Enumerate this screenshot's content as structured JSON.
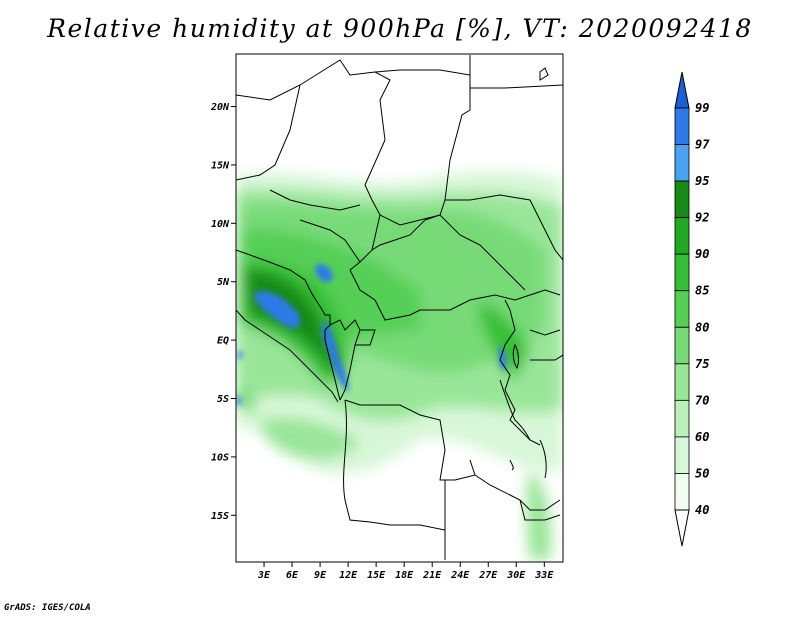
{
  "title": "Relative humidity at 900hPa [%], VT: 2020092418",
  "credit": "GrADS: IGES/COLA",
  "map": {
    "lat_ticks": [
      "20N",
      "15N",
      "10N",
      "5N",
      "EQ",
      "5S",
      "10S",
      "15S"
    ],
    "lon_ticks": [
      "3E",
      "6E",
      "9E",
      "12E",
      "15E",
      "18E",
      "21E",
      "24E",
      "27E",
      "30E",
      "33E"
    ],
    "lat_range": [
      -19,
      24.5
    ],
    "lon_range": [
      0,
      35
    ]
  },
  "colorbar": {
    "levels": [
      "99",
      "97",
      "95",
      "92",
      "90",
      "85",
      "80",
      "75",
      "70",
      "60",
      "50",
      "40"
    ],
    "colors": [
      "#1e5fd6",
      "#2f79e8",
      "#4aa3f0",
      "#168a16",
      "#22a822",
      "#36bf36",
      "#55cf55",
      "#77da77",
      "#99e699",
      "#bbf0bb",
      "#d8f7d8",
      "#f0fdf0",
      "#ffffff"
    ]
  }
}
